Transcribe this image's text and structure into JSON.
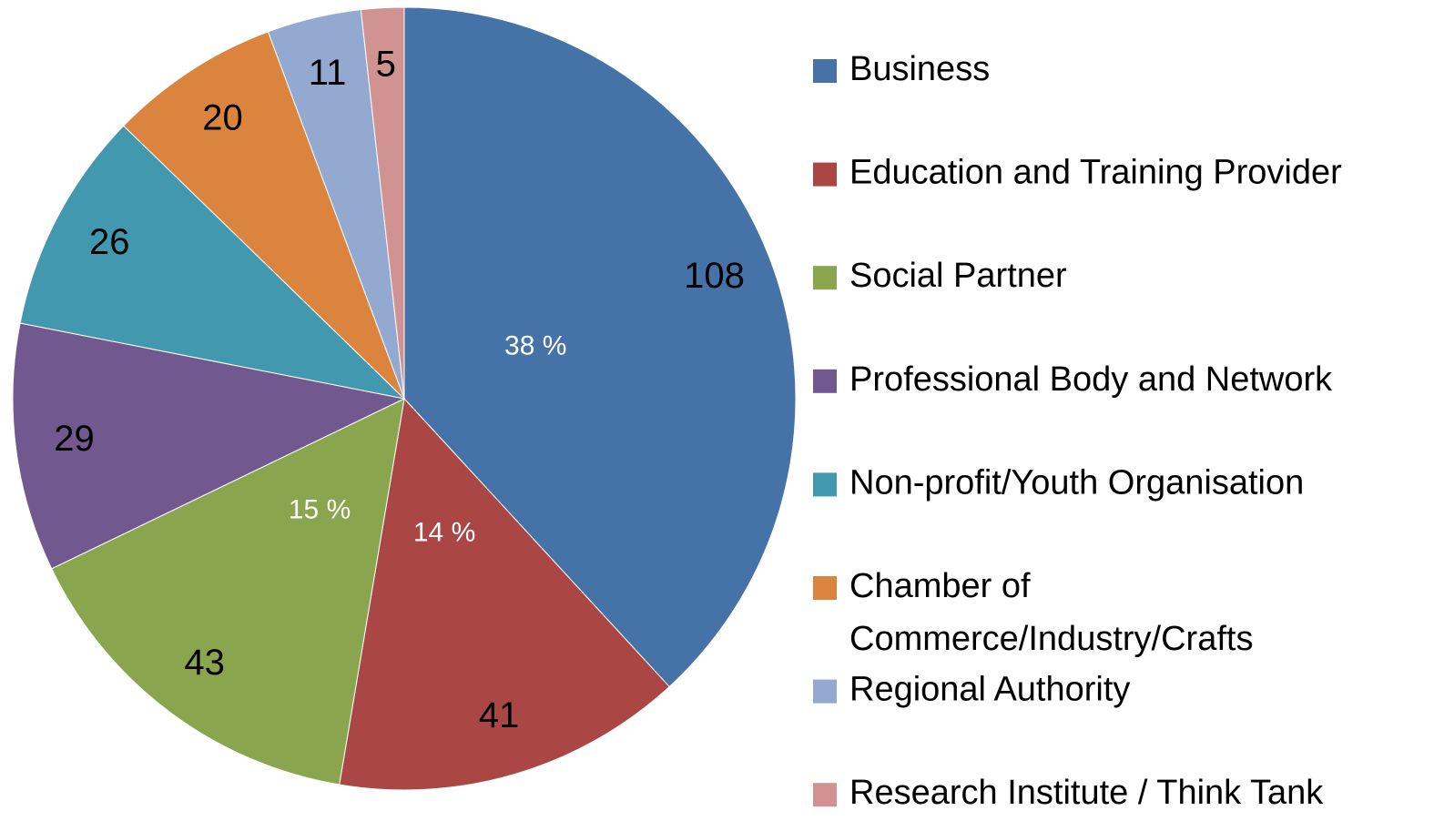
{
  "chart_data": {
    "type": "pie",
    "categories": [
      "Business",
      "Education and Training Provider",
      "Social Partner",
      "Professional Body and Network",
      "Non-profit/Youth Organisation",
      "Chamber of Commerce/Industry/Crafts",
      "Regional Authority",
      "Research Institute / Think Tank"
    ],
    "values": [
      108,
      41,
      43,
      29,
      26,
      20,
      11,
      5
    ],
    "colors": [
      "#4572a7",
      "#aa4643",
      "#89a54e",
      "#71588f",
      "#4198af",
      "#db843d",
      "#93a9cf",
      "#d19392"
    ],
    "percent_labels": [
      "38 %",
      "14 %",
      "15 %"
    ],
    "legend": "right"
  }
}
